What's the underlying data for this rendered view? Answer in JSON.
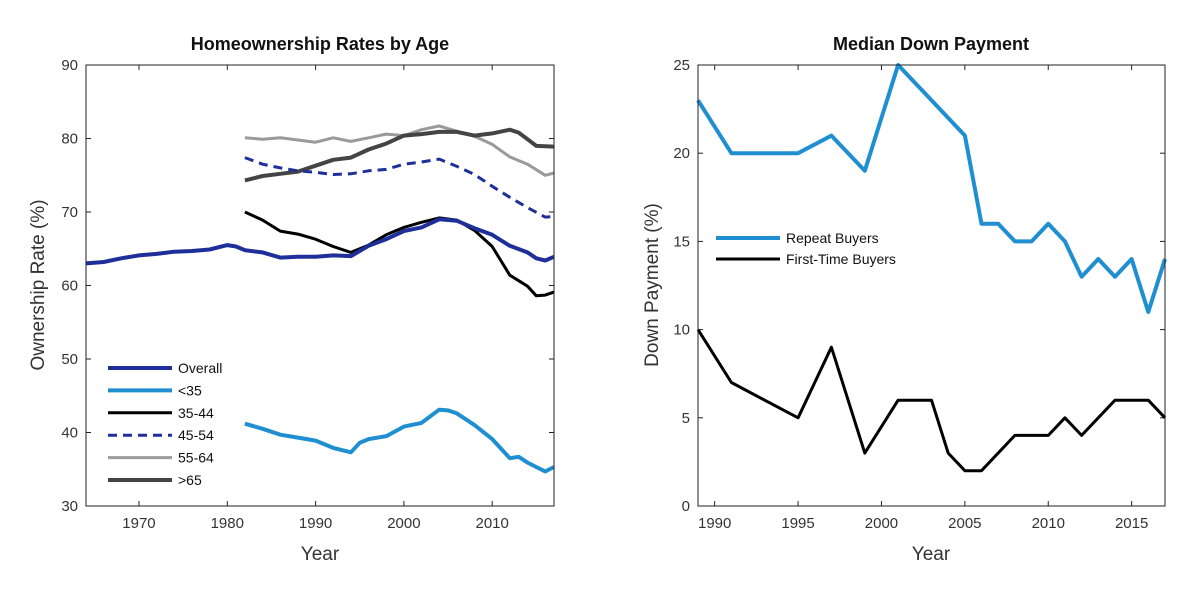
{
  "chart_data": [
    {
      "type": "line",
      "title": "Homeownership Rates by Age",
      "xlabel": "Year",
      "ylabel": "Ownership Rate (%)",
      "xlim": [
        1964,
        2017
      ],
      "ylim": [
        30,
        90
      ],
      "xticks": [
        1970,
        1980,
        1990,
        2000,
        2010
      ],
      "yticks": [
        30,
        40,
        50,
        60,
        70,
        80,
        90
      ],
      "legend_position": "lower-left",
      "series": [
        {
          "name": "Overall",
          "color": "#1f2f9a",
          "style": "solid",
          "width": 4,
          "points": [
            [
              1964,
              63
            ],
            [
              1966,
              63.2
            ],
            [
              1968,
              63.7
            ],
            [
              1970,
              64.1
            ],
            [
              1972,
              64.3
            ],
            [
              1974,
              64.6
            ],
            [
              1976,
              64.7
            ],
            [
              1978,
              64.9
            ],
            [
              1980,
              65.5
            ],
            [
              1981,
              65.3
            ],
            [
              1982,
              64.8
            ],
            [
              1984,
              64.5
            ],
            [
              1986,
              63.8
            ],
            [
              1988,
              63.9
            ],
            [
              1990,
              63.9
            ],
            [
              1992,
              64.1
            ],
            [
              1994,
              64
            ],
            [
              1996,
              65.4
            ],
            [
              1998,
              66.3
            ],
            [
              2000,
              67.4
            ],
            [
              2002,
              67.9
            ],
            [
              2004,
              69
            ],
            [
              2006,
              68.8
            ],
            [
              2008,
              67.8
            ],
            [
              2010,
              66.9
            ],
            [
              2012,
              65.4
            ],
            [
              2014,
              64.5
            ],
            [
              2015,
              63.7
            ],
            [
              2016,
              63.4
            ],
            [
              2017,
              63.9
            ]
          ]
        },
        {
          "name": "<35",
          "color": "#1f8fd1",
          "style": "solid",
          "width": 4,
          "points": [
            [
              1982,
              41.2
            ],
            [
              1984,
              40.5
            ],
            [
              1986,
              39.7
            ],
            [
              1988,
              39.3
            ],
            [
              1990,
              38.9
            ],
            [
              1992,
              37.9
            ],
            [
              1994,
              37.3
            ],
            [
              1995,
              38.6
            ],
            [
              1996,
              39.1
            ],
            [
              1998,
              39.5
            ],
            [
              2000,
              40.8
            ],
            [
              2002,
              41.3
            ],
            [
              2004,
              43.1
            ],
            [
              2005,
              43
            ],
            [
              2006,
              42.6
            ],
            [
              2008,
              41
            ],
            [
              2010,
              39.1
            ],
            [
              2012,
              36.5
            ],
            [
              2013,
              36.7
            ],
            [
              2014,
              35.9
            ],
            [
              2016,
              34.7
            ],
            [
              2017,
              35.3
            ]
          ]
        },
        {
          "name": "35-44",
          "color": "#000000",
          "style": "solid",
          "width": 3,
          "points": [
            [
              1982,
              70
            ],
            [
              1984,
              68.9
            ],
            [
              1986,
              67.4
            ],
            [
              1988,
              67
            ],
            [
              1990,
              66.3
            ],
            [
              1992,
              65.3
            ],
            [
              1994,
              64.5
            ],
            [
              1996,
              65.5
            ],
            [
              1998,
              66.9
            ],
            [
              2000,
              67.9
            ],
            [
              2002,
              68.6
            ],
            [
              2004,
              69.2
            ],
            [
              2006,
              68.9
            ],
            [
              2008,
              67.5
            ],
            [
              2010,
              65.3
            ],
            [
              2012,
              61.4
            ],
            [
              2014,
              59.9
            ],
            [
              2015,
              58.6
            ],
            [
              2016,
              58.7
            ],
            [
              2017,
              59.1
            ]
          ]
        },
        {
          "name": "45-54",
          "color": "#1f2f9a",
          "style": "dashed",
          "width": 3,
          "points": [
            [
              1982,
              77.4
            ],
            [
              1984,
              76.5
            ],
            [
              1986,
              76
            ],
            [
              1988,
              75.6
            ],
            [
              1990,
              75.4
            ],
            [
              1992,
              75.1
            ],
            [
              1994,
              75.2
            ],
            [
              1996,
              75.6
            ],
            [
              1998,
              75.8
            ],
            [
              2000,
              76.5
            ],
            [
              2002,
              76.8
            ],
            [
              2004,
              77.2
            ],
            [
              2006,
              76.2
            ],
            [
              2008,
              75.1
            ],
            [
              2010,
              73.5
            ],
            [
              2012,
              72
            ],
            [
              2014,
              70.6
            ],
            [
              2016,
              69.3
            ],
            [
              2017,
              69.4
            ]
          ]
        },
        {
          "name": "55-64",
          "color": "#9a9a9a",
          "style": "solid",
          "width": 3,
          "points": [
            [
              1982,
              80.1
            ],
            [
              1984,
              79.9
            ],
            [
              1986,
              80.1
            ],
            [
              1988,
              79.8
            ],
            [
              1990,
              79.5
            ],
            [
              1992,
              80.1
            ],
            [
              1994,
              79.6
            ],
            [
              1996,
              80.1
            ],
            [
              1998,
              80.6
            ],
            [
              2000,
              80.4
            ],
            [
              2002,
              81.2
            ],
            [
              2004,
              81.7
            ],
            [
              2006,
              81
            ],
            [
              2008,
              80.3
            ],
            [
              2010,
              79.2
            ],
            [
              2012,
              77.5
            ],
            [
              2014,
              76.5
            ],
            [
              2016,
              75
            ],
            [
              2017,
              75.3
            ]
          ]
        },
        {
          "name": ">65",
          "color": "#444444",
          "style": "solid",
          "width": 4,
          "points": [
            [
              1982,
              74.3
            ],
            [
              1984,
              74.9
            ],
            [
              1986,
              75.2
            ],
            [
              1988,
              75.5
            ],
            [
              1990,
              76.3
            ],
            [
              1992,
              77.1
            ],
            [
              1994,
              77.4
            ],
            [
              1996,
              78.5
            ],
            [
              1998,
              79.3
            ],
            [
              2000,
              80.4
            ],
            [
              2002,
              80.6
            ],
            [
              2004,
              80.9
            ],
            [
              2006,
              80.9
            ],
            [
              2008,
              80.4
            ],
            [
              2010,
              80.7
            ],
            [
              2012,
              81.2
            ],
            [
              2013,
              80.8
            ],
            [
              2014,
              79.9
            ],
            [
              2015,
              79
            ],
            [
              2017,
              78.9
            ]
          ]
        }
      ]
    },
    {
      "type": "line",
      "title": "Median Down Payment",
      "xlabel": "Year",
      "ylabel": "Down Payment (%)",
      "xlim": [
        1989,
        2017
      ],
      "ylim": [
        0,
        25
      ],
      "xticks": [
        1990,
        1995,
        2000,
        2005,
        2010,
        2015
      ],
      "yticks": [
        0,
        5,
        10,
        15,
        20,
        25
      ],
      "legend_position": "middle-left",
      "series": [
        {
          "name": "Repeat Buyers",
          "color": "#1f8fd1",
          "style": "solid",
          "width": 4,
          "points": [
            [
              1989,
              23
            ],
            [
              1991,
              20
            ],
            [
              1993,
              20
            ],
            [
              1995,
              20
            ],
            [
              1997,
              21
            ],
            [
              1999,
              19
            ],
            [
              2001,
              25
            ],
            [
              2003,
              23
            ],
            [
              2005,
              21
            ],
            [
              2006,
              16
            ],
            [
              2007,
              16
            ],
            [
              2008,
              15
            ],
            [
              2009,
              15
            ],
            [
              2010,
              16
            ],
            [
              2011,
              15
            ],
            [
              2012,
              13
            ],
            [
              2013,
              14
            ],
            [
              2014,
              13
            ],
            [
              2015,
              14
            ],
            [
              2016,
              11
            ],
            [
              2017,
              14
            ]
          ]
        },
        {
          "name": "First-Time Buyers",
          "color": "#000000",
          "style": "solid",
          "width": 3,
          "points": [
            [
              1989,
              10
            ],
            [
              1991,
              7
            ],
            [
              1993,
              6
            ],
            [
              1995,
              5
            ],
            [
              1997,
              9
            ],
            [
              1999,
              3
            ],
            [
              2001,
              6
            ],
            [
              2003,
              6
            ],
            [
              2004,
              3
            ],
            [
              2005,
              2
            ],
            [
              2006,
              2
            ],
            [
              2008,
              4
            ],
            [
              2010,
              4
            ],
            [
              2011,
              5
            ],
            [
              2012,
              4
            ],
            [
              2014,
              6
            ],
            [
              2016,
              6
            ],
            [
              2017,
              5
            ]
          ]
        }
      ]
    }
  ]
}
